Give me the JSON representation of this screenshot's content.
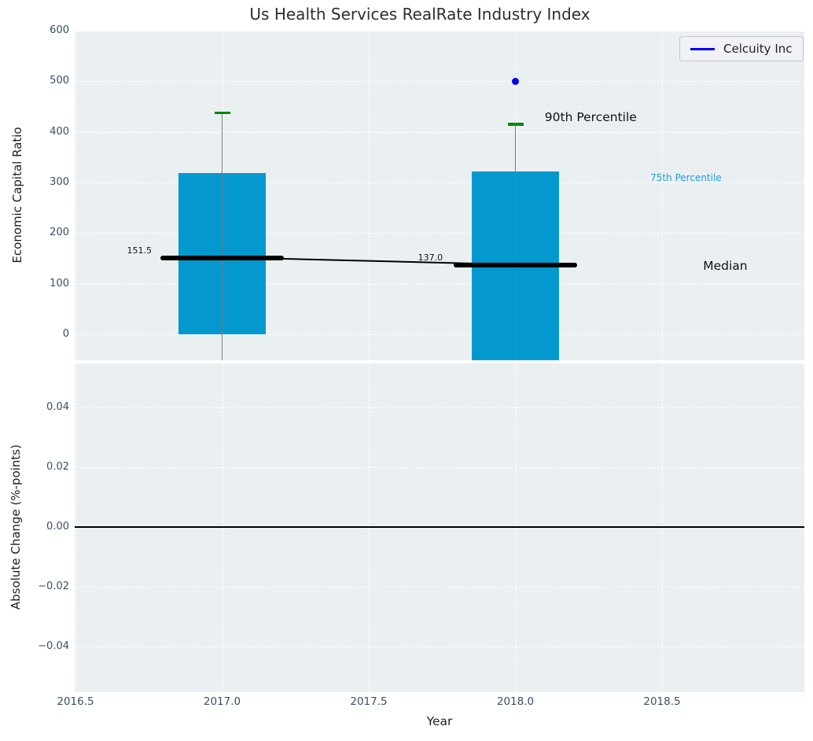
{
  "title": "Us Health Services RealRate Industry Index",
  "legend": {
    "label": "Celcuity Inc"
  },
  "axes": {
    "top_ylabel": "Economic Capital Ratio",
    "bottom_ylabel": "Absolute Change (%-points)",
    "xlabel": "Year"
  },
  "chart_data": {
    "type": "bar",
    "title": "Us Health Services RealRate Industry Index",
    "xlabel": "Year",
    "xtick_labels": [
      "2016.5",
      "2017.0",
      "2017.5",
      "2018.0",
      "2018.5"
    ],
    "xtick_values": [
      2016.5,
      2017.0,
      2017.5,
      2018.0,
      2018.5
    ],
    "xlim": [
      2016.497,
      2018.985
    ],
    "grid": "white dashed on light panel",
    "legend": {
      "label": "Celcuity Inc",
      "position": "upper right"
    },
    "panels": [
      {
        "name": "economic-capital-ratio",
        "ylabel": "Economic Capital Ratio",
        "ylim": [
          -51,
          598
        ],
        "ytick_values": [
          0,
          100,
          200,
          300,
          400,
          500,
          600
        ],
        "bar_years": [
          2017,
          2018
        ],
        "bar_width_years": 0.3,
        "bars_75th_percentile_top": [
          319,
          322
        ],
        "bars_bottom": [
          0,
          -51
        ],
        "bars_bottom_clipped": [
          false,
          true
        ],
        "median_values": [
          151.5,
          137.0
        ],
        "median_labels": [
          "151.5",
          "137.0"
        ],
        "p90_whisker_caps": [
          438,
          415
        ],
        "whiskers_low_clipped_at": -51,
        "scatter_series": {
          "name": "Celcuity Inc",
          "points": [
            {
              "x": 2018,
              "y": 499
            }
          ]
        },
        "annotations": [
          {
            "id": "median-2017-value",
            "text": "151.5",
            "x": 2016.76,
            "y": 166,
            "align": "right",
            "kind": "value"
          },
          {
            "id": "median-2018-value",
            "text": "137.0",
            "x": 2017.71,
            "y": 152,
            "align": "center",
            "kind": "value"
          },
          {
            "id": "90th-percentile-label",
            "text": "90th Percentile",
            "x": 2018.1,
            "y": 429,
            "align": "left",
            "kind": "big"
          },
          {
            "id": "75th-percentile-label",
            "text": "75th Percentile",
            "x": 2018.46,
            "y": 309,
            "align": "left",
            "kind": "p75"
          },
          {
            "id": "median-label",
            "text": "Median",
            "x": 2018.64,
            "y": 135,
            "align": "left",
            "kind": "big"
          }
        ]
      },
      {
        "name": "absolute-change",
        "ylabel": "Absolute Change (%-points)",
        "ylim": [
          -0.055,
          0.055
        ],
        "ytick_values": [
          0.04,
          0.02,
          0.0,
          -0.02,
          -0.04
        ],
        "ytick_labels": [
          "0.04",
          "0.02",
          "0.00",
          "−0.02",
          "−0.04"
        ],
        "zero_line": 0.0,
        "series": []
      }
    ],
    "colors": {
      "bar": "#0399cf",
      "median_line": "#000000",
      "percentile_cap": "#0a870a",
      "whisker": "#777777",
      "scatter_dot": "#0000f0",
      "legend_line": "#0000f0",
      "p75_text": "#18a0d6",
      "panel_background": "#eaeff1",
      "tick_text": "#3b4f63"
    }
  }
}
